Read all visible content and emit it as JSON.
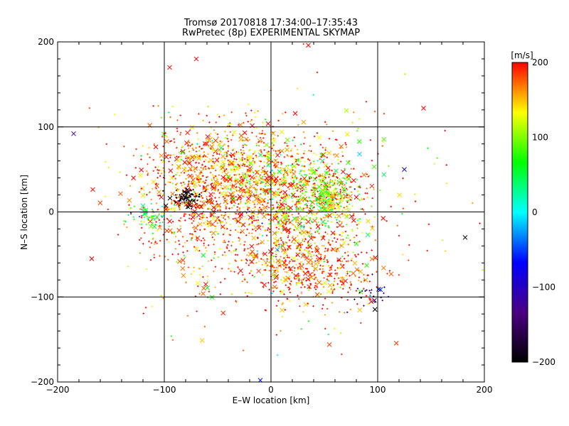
{
  "chart_data": {
    "type": "scatter",
    "title": "Tromsø 20170818 17:34:00–17:35:43",
    "subtitle": "RwPretec (8p) EXPERIMENTAL SKYMAP",
    "xlabel": "E–W location [km]",
    "ylabel": "N–S location [km]",
    "xlim": [
      -200,
      200
    ],
    "ylim": [
      -200,
      200
    ],
    "x_ticks": [
      "−200",
      "−100",
      "0",
      "100",
      "200"
    ],
    "y_ticks": [
      "−200",
      "−100",
      "0",
      "100",
      "200"
    ],
    "gridlines_x": [
      -100,
      0,
      100
    ],
    "gridlines_y": [
      -100,
      0,
      100
    ],
    "colorbar": {
      "label": "[m/s]",
      "min": -200,
      "max": 200,
      "ticks": [
        "200",
        "100",
        "0",
        "−100",
        "−200"
      ],
      "colors": [
        "#000000",
        "#4b0082",
        "#0000ff",
        "#00ffff",
        "#00ff00",
        "#ffff00",
        "#ff0000"
      ]
    },
    "markers": [
      "dot",
      "x"
    ],
    "clusters": [
      {
        "cx": -40,
        "cy": 50,
        "sx": 35,
        "sy": 30,
        "n": 700,
        "vmean": 170,
        "vsd": 40
      },
      {
        "cx": 30,
        "cy": 20,
        "sx": 30,
        "sy": 30,
        "n": 650,
        "vmean": 140,
        "vsd": 70
      },
      {
        "cx": 55,
        "cy": 20,
        "sx": 12,
        "sy": 10,
        "n": 220,
        "vmean": 110,
        "vsd": 50
      },
      {
        "cx": 30,
        "cy": -60,
        "sx": 25,
        "sy": 22,
        "n": 420,
        "vmean": 180,
        "vsd": 30
      },
      {
        "cx": -77,
        "cy": 15,
        "sx": 8,
        "sy": 6,
        "n": 90,
        "vmean": -200,
        "vsd": 5
      },
      {
        "cx": -115,
        "cy": -5,
        "sx": 10,
        "sy": 8,
        "n": 70,
        "vmean": 60,
        "vsd": 50
      },
      {
        "cx": -60,
        "cy": 0,
        "sx": 40,
        "sy": 40,
        "n": 500,
        "vmean": 180,
        "vsd": 30
      },
      {
        "cx": 10,
        "cy": 0,
        "sx": 60,
        "sy": 60,
        "n": 450,
        "vmean": 160,
        "vsd": 60
      },
      {
        "cx": 0,
        "cy": 0,
        "sx": 90,
        "sy": 80,
        "n": 120,
        "vmean": 160,
        "vsd": 60
      },
      {
        "cx": 80,
        "cy": -80,
        "sx": 20,
        "sy": 20,
        "n": 60,
        "vmean": 190,
        "vsd": 20
      },
      {
        "cx": 95,
        "cy": -100,
        "sx": 8,
        "sy": 8,
        "n": 25,
        "vmean": -150,
        "vsd": 60
      }
    ],
    "scattered": [
      {
        "x": -185,
        "y": 92,
        "v": -120,
        "m": "x"
      },
      {
        "x": 182,
        "y": -30,
        "v": -200,
        "m": "x"
      },
      {
        "x": 143,
        "y": 122,
        "v": 200,
        "m": "x"
      },
      {
        "x": 125,
        "y": 50,
        "v": -100,
        "m": "x"
      },
      {
        "x": -168,
        "y": -55,
        "v": 200,
        "m": "x"
      },
      {
        "x": -10,
        "y": -198,
        "v": -60,
        "m": "x"
      },
      {
        "x": 35,
        "y": 196,
        "v": 200,
        "m": "x"
      },
      {
        "x": -70,
        "y": 180,
        "v": 200,
        "m": "x"
      },
      {
        "x": -95,
        "y": 170,
        "v": 200,
        "m": "x"
      }
    ]
  }
}
